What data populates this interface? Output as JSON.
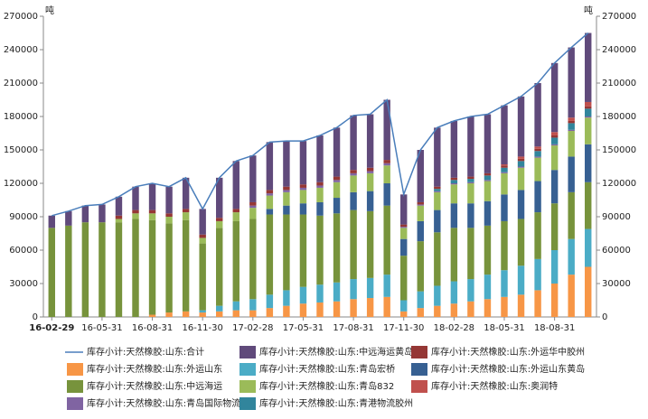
{
  "chart_data": {
    "type": "bar",
    "stacked": true,
    "yunit": "吨",
    "y2unit": "吨",
    "categories": [
      "16-02-29",
      null,
      null,
      "16-05-31",
      null,
      null,
      "16-08-31",
      null,
      null,
      "16-11-30",
      null,
      null,
      "17-02-28",
      null,
      null,
      "17-05-31",
      null,
      null,
      "17-08-31",
      null,
      null,
      "17-11-30",
      null,
      null,
      "18-02-28",
      null,
      null,
      "18-05-31",
      null,
      null,
      "18-08-31",
      null,
      null
    ],
    "ylim": [
      0,
      270000
    ],
    "yticks": [
      0,
      30000,
      60000,
      90000,
      120000,
      150000,
      180000,
      210000,
      240000,
      270000
    ],
    "y2lim": [
      0,
      270000
    ],
    "y2ticks": [
      0,
      30000,
      60000,
      90000,
      120000,
      150000,
      180000,
      210000,
      240000,
      270000
    ],
    "series": [
      {
        "name": "库存小计:天然橡胶:山东:合计",
        "type": "line",
        "color": "#4a7ebb",
        "values": [
          91000,
          95000,
          100000,
          101000,
          108000,
          117000,
          120000,
          117000,
          125000,
          97000,
          125000,
          140000,
          145000,
          157000,
          158000,
          158000,
          163000,
          170000,
          181000,
          182000,
          195000,
          110000,
          150000,
          170000,
          176000,
          180000,
          182000,
          190000,
          198000,
          210000,
          228000,
          242000,
          255000
        ]
      },
      {
        "name": "库存小计:天然橡胶:山东:中远海运黄岛",
        "color": "#604a7b",
        "values": [
          11000,
          13000,
          15000,
          16000,
          17000,
          21000,
          24000,
          24000,
          28000,
          23000,
          36000,
          43000,
          42000,
          43000,
          41000,
          39000,
          42000,
          44000,
          49000,
          48000,
          54000,
          27000,
          47000,
          53000,
          51000,
          54000,
          53000,
          53000,
          54000,
          57000,
          62000,
          63000,
          62000
        ]
      },
      {
        "name": "库存小计:天然橡胶:山东:外运华中胶州",
        "color": "#953735",
        "values": [
          0,
          0,
          0,
          0,
          3000,
          3000,
          3000,
          3000,
          3000,
          3000,
          3000,
          3000,
          3000,
          3000,
          3000,
          3000,
          3000,
          3000,
          3000,
          3000,
          3000,
          2000,
          2000,
          2000,
          2000,
          2000,
          2000,
          2000,
          2000,
          2000,
          2000,
          2000,
          2000
        ]
      },
      {
        "name": "库存小计:天然橡胶:山东:外运山东",
        "color": "#f79646",
        "values": [
          0,
          0,
          0,
          0,
          0,
          0,
          2000,
          4000,
          5000,
          4000,
          5000,
          6000,
          6000,
          8000,
          10000,
          12000,
          13000,
          14000,
          16000,
          17000,
          18000,
          5000,
          8000,
          10000,
          12000,
          14000,
          16000,
          18000,
          20000,
          24000,
          30000,
          38000,
          45000
        ]
      },
      {
        "name": "库存小计:天然橡胶:山东:青岛宏桥",
        "color": "#4bacc6",
        "values": [
          0,
          0,
          0,
          0,
          0,
          0,
          0,
          0,
          0,
          2000,
          5000,
          8000,
          10000,
          12000,
          14000,
          15000,
          16000,
          17000,
          18000,
          18000,
          20000,
          10000,
          15000,
          18000,
          20000,
          20000,
          22000,
          24000,
          26000,
          28000,
          30000,
          32000,
          34000
        ]
      },
      {
        "name": "库存小计:天然橡胶:山东:外运山东黄岛",
        "color": "#376092",
        "values": [
          0,
          0,
          0,
          0,
          0,
          0,
          0,
          0,
          0,
          0,
          0,
          0,
          0,
          5000,
          8000,
          10000,
          12000,
          14000,
          16000,
          18000,
          20000,
          15000,
          18000,
          20000,
          22000,
          22000,
          22000,
          24000,
          26000,
          28000,
          30000,
          32000,
          34000
        ]
      },
      {
        "name": "库存小计:天然橡胶:山东:中远海运",
        "color": "#77933c",
        "values": [
          80000,
          82000,
          85000,
          85000,
          85000,
          88000,
          85000,
          80000,
          82000,
          60000,
          70000,
          72000,
          72000,
          72000,
          68000,
          65000,
          62000,
          62000,
          62000,
          60000,
          62000,
          40000,
          45000,
          48000,
          48000,
          46000,
          44000,
          44000,
          42000,
          42000,
          42000,
          42000,
          42000
        ]
      },
      {
        "name": "库存小计:天然橡胶:山东:青岛832",
        "color": "#9bbb59",
        "values": [
          0,
          0,
          0,
          0,
          3000,
          5000,
          6000,
          6000,
          7000,
          5000,
          6000,
          8000,
          10000,
          12000,
          12000,
          12000,
          13000,
          14000,
          15000,
          16000,
          16000,
          10000,
          14000,
          16000,
          17000,
          18000,
          18000,
          19000,
          20000,
          21000,
          22000,
          23000,
          24000
        ]
      },
      {
        "name": "库存小计:天然橡胶:山东:奥润特",
        "color": "#c0504d",
        "values": [
          0,
          0,
          0,
          0,
          0,
          0,
          0,
          0,
          0,
          0,
          0,
          0,
          0,
          0,
          0,
          0,
          0,
          0,
          0,
          0,
          0,
          0,
          0,
          0,
          0,
          0,
          0,
          1000,
          2000,
          2000,
          3000,
          3000,
          4000
        ]
      },
      {
        "name": "库存小计:天然橡胶:山东:青岛国际物流",
        "color": "#8064a2",
        "values": [
          0,
          0,
          0,
          0,
          0,
          0,
          0,
          0,
          0,
          0,
          0,
          0,
          2000,
          2000,
          2000,
          2000,
          2000,
          2000,
          2000,
          2000,
          2000,
          1000,
          1000,
          1000,
          1000,
          1000,
          1000,
          1000,
          1000,
          1000,
          1000,
          1000,
          1000
        ]
      },
      {
        "name": "库存小计:天然橡胶:山东:青港物流胶州",
        "color": "#31859c",
        "values": [
          0,
          0,
          0,
          0,
          0,
          0,
          0,
          0,
          0,
          0,
          0,
          0,
          0,
          0,
          0,
          0,
          0,
          0,
          0,
          0,
          0,
          0,
          0,
          2000,
          3000,
          3000,
          4000,
          4000,
          5000,
          5000,
          6000,
          6000,
          7000
        ]
      }
    ]
  }
}
